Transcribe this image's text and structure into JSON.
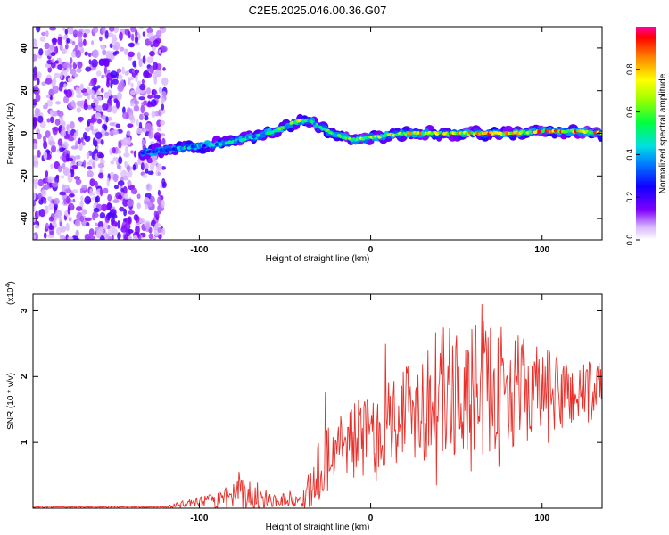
{
  "title": "C2E5.2025.046.00.36.G07",
  "chart_data": [
    {
      "type": "heatmap",
      "xlabel": "Height of straight line (km)",
      "ylabel": "Frequency (Hz)",
      "xlim": [
        -197,
        135
      ],
      "ylim": [
        -50,
        50
      ],
      "xticks": [
        -100,
        0,
        100
      ],
      "yticks": [
        -40,
        -20,
        0,
        20,
        40
      ],
      "colorbar": {
        "label": "Normalized spectral amplitude",
        "range": [
          0,
          1
        ],
        "ticks": [
          0.0,
          0.2,
          0.4,
          0.6,
          0.8
        ]
      },
      "noise_region_x": [
        -197,
        -120
      ],
      "trace": {
        "x": [
          -133,
          -120,
          -110,
          -100,
          -90,
          -80,
          -70,
          -60,
          -50,
          -45,
          -40,
          -35,
          -30,
          -20,
          -10,
          0,
          10,
          20,
          40,
          60,
          80,
          100,
          120,
          135
        ],
        "freq": [
          -9,
          -8,
          -7,
          -6,
          -5,
          -4,
          -2,
          0,
          3,
          5,
          6,
          6,
          3,
          -1,
          -3,
          -2,
          -1,
          0,
          0,
          0,
          0,
          1,
          1,
          0
        ],
        "amp": [
          0.3,
          0.4,
          0.5,
          0.4,
          0.45,
          0.5,
          0.5,
          0.55,
          0.6,
          0.7,
          0.75,
          0.65,
          0.6,
          0.6,
          0.65,
          0.7,
          0.75,
          0.8,
          0.85,
          0.9,
          0.9,
          0.95,
          0.9,
          0.9
        ]
      }
    },
    {
      "type": "line",
      "xlabel": "Height of straight line (km)",
      "ylabel": "SNR (10 * v/v)",
      "multiplier_label": "(x10",
      "multiplier_exp": "4",
      "xlim": [
        -197,
        135
      ],
      "ylim": [
        0,
        3.25
      ],
      "xticks": [
        -100,
        0,
        100
      ],
      "yticks": [
        1,
        2,
        3
      ],
      "color": "#e8302a",
      "envelope": {
        "x": [
          -197,
          -120,
          -110,
          -90,
          -80,
          -75,
          -60,
          -40,
          -35,
          -30,
          -25,
          -20,
          -15,
          -10,
          0,
          10,
          20,
          30,
          40,
          50,
          60,
          70,
          80,
          90,
          100,
          110,
          120,
          130,
          135
        ],
        "mean": [
          0.02,
          0.02,
          0.06,
          0.12,
          0.18,
          0.2,
          0.14,
          0.12,
          0.3,
          0.55,
          0.8,
          0.95,
          1.0,
          1.05,
          1.1,
          1.35,
          1.5,
          1.6,
          1.75,
          1.75,
          1.8,
          1.85,
          1.8,
          1.8,
          1.75,
          1.75,
          1.75,
          1.75,
          1.75
        ],
        "amp": [
          0.01,
          0.01,
          0.05,
          0.12,
          0.2,
          0.3,
          0.12,
          0.1,
          0.35,
          0.5,
          0.6,
          0.6,
          0.6,
          0.6,
          0.65,
          0.7,
          0.8,
          0.9,
          1.0,
          1.05,
          1.05,
          1.0,
          0.9,
          0.8,
          0.7,
          0.6,
          0.55,
          0.5,
          0.5
        ]
      }
    }
  ]
}
